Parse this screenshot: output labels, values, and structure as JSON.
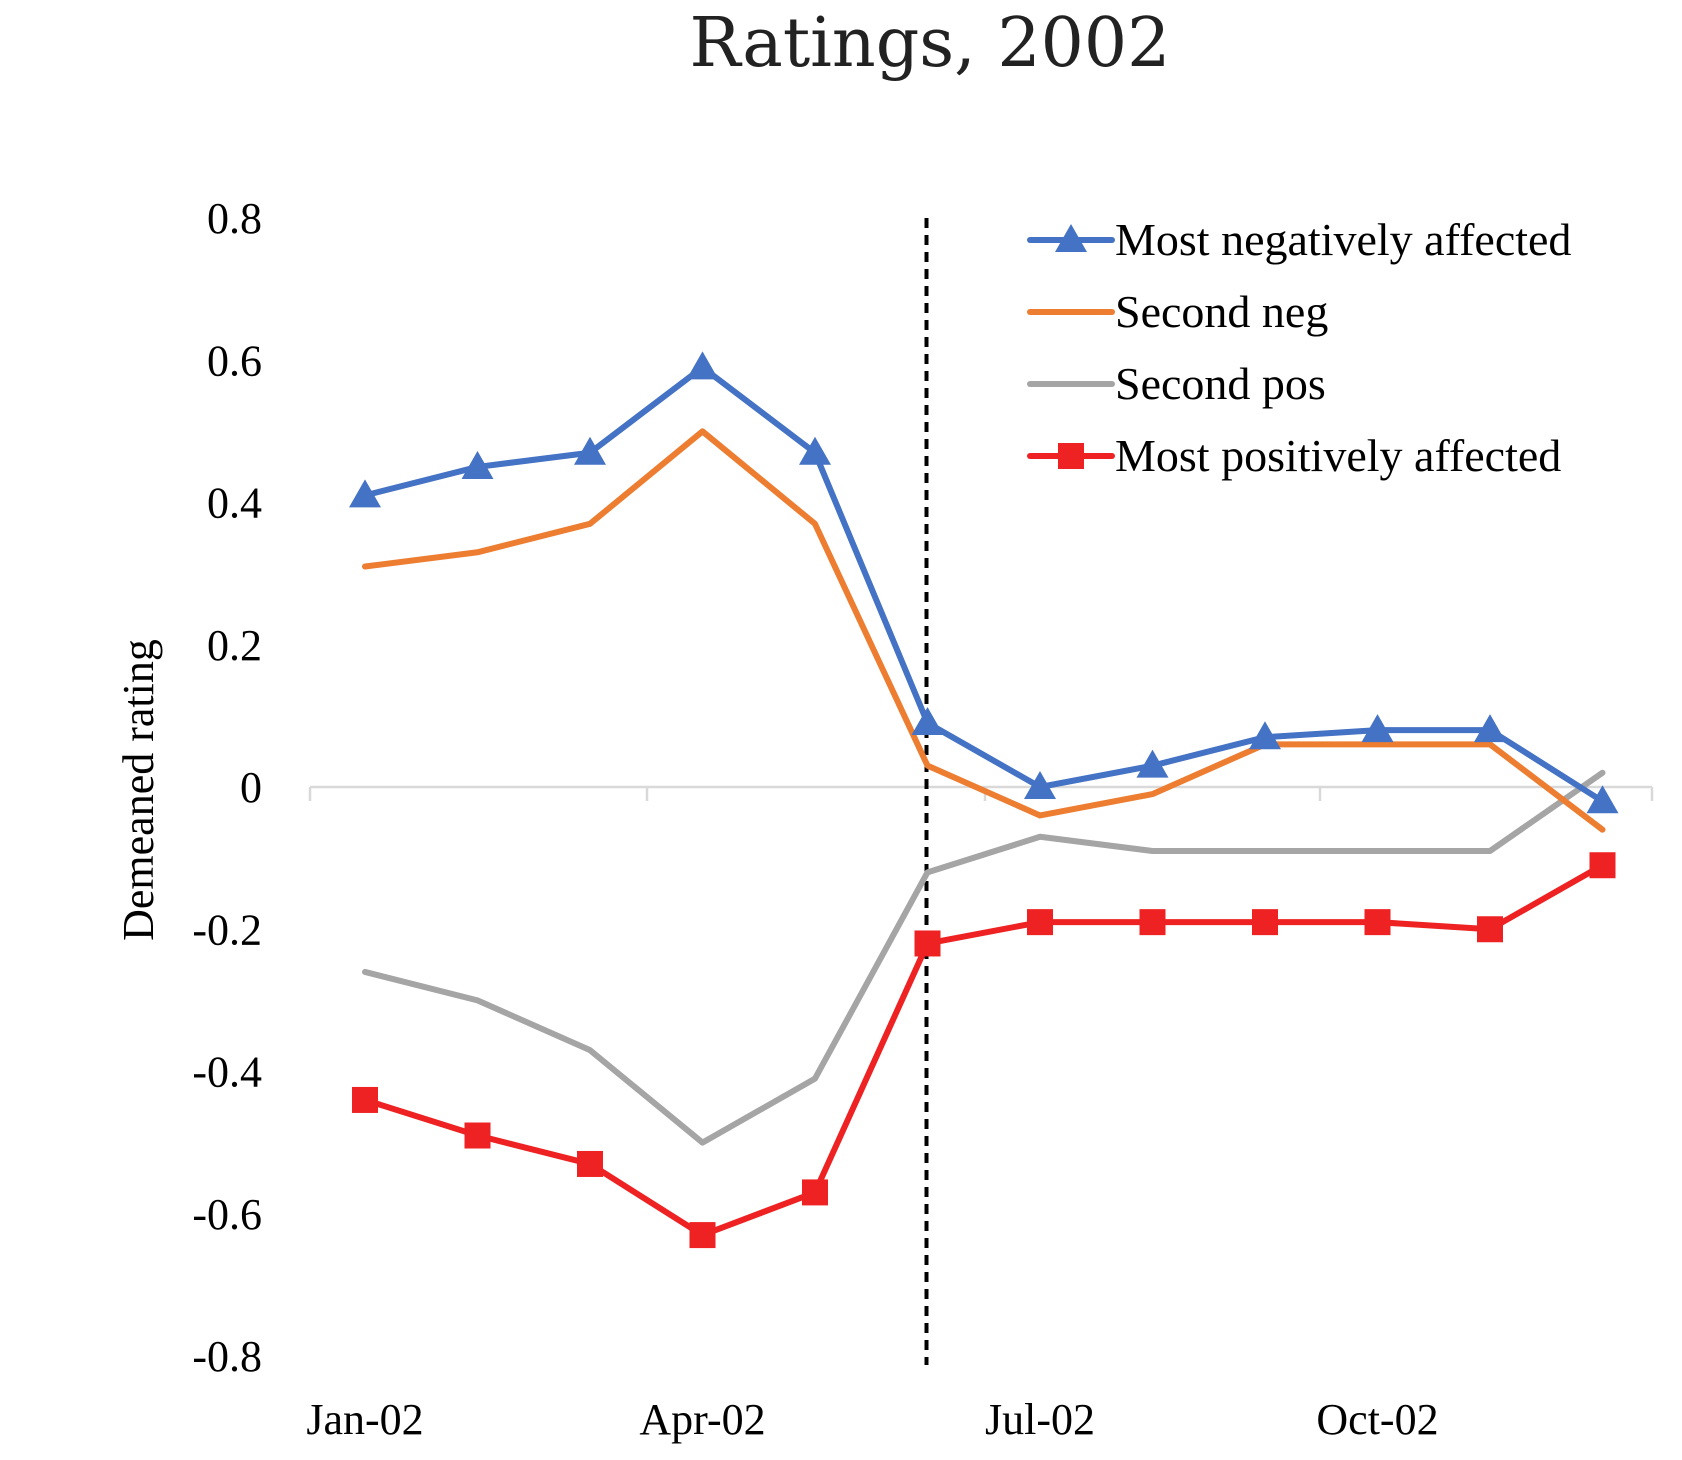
{
  "chart_data": {
    "type": "line",
    "title": "Ratings, 2002",
    "ylabel": "Demeaned rating",
    "xlabel": "",
    "ylim": [
      -0.8,
      0.8
    ],
    "yticks": [
      0.8,
      0.6,
      0.4,
      0.2,
      0,
      -0.2,
      -0.4,
      -0.6,
      -0.8
    ],
    "ytick_labels": [
      "0.8",
      "0.6",
      "0.4",
      "0.2",
      "0",
      "-0.2",
      "-0.4",
      "-0.6",
      "-0.8"
    ],
    "x_months": [
      "Jan-02",
      "Feb-02",
      "Mar-02",
      "Apr-02",
      "May-02",
      "Jun-02",
      "Jul-02",
      "Aug-02",
      "Sep-02",
      "Oct-02",
      "Nov-02",
      "Dec-02"
    ],
    "xtick_labels": [
      "Jan-02",
      "Apr-02",
      "Jul-02",
      "Oct-02"
    ],
    "xtick_months": [
      "Jan-02",
      "Apr-02",
      "Jul-02",
      "Oct-02"
    ],
    "reference_line": {
      "x": "Jun-02",
      "style": "dashed",
      "color": "#000000"
    },
    "grid": false,
    "legend_position": "top-right",
    "series": [
      {
        "name": "Most negatively affected",
        "color": "#4472C4",
        "marker": "triangle",
        "values": [
          0.41,
          0.45,
          0.47,
          0.59,
          0.47,
          0.09,
          0.0,
          0.03,
          0.07,
          0.08,
          0.08,
          -0.02
        ]
      },
      {
        "name": "Second neg",
        "color": "#ED7D31",
        "marker": "none",
        "values": [
          0.31,
          0.33,
          0.37,
          0.5,
          0.37,
          0.03,
          -0.04,
          -0.01,
          0.06,
          0.06,
          0.06,
          -0.06
        ]
      },
      {
        "name": "Second pos",
        "color": "#A5A5A5",
        "marker": "none",
        "values": [
          -0.26,
          -0.3,
          -0.37,
          -0.5,
          -0.41,
          -0.12,
          -0.07,
          -0.09,
          -0.09,
          -0.09,
          -0.09,
          0.02
        ]
      },
      {
        "name": "Most positively affected",
        "color": "#EE2222",
        "marker": "square",
        "values": [
          -0.44,
          -0.49,
          -0.53,
          -0.63,
          -0.57,
          -0.22,
          -0.19,
          -0.19,
          -0.19,
          -0.19,
          -0.2,
          -0.11
        ]
      }
    ]
  }
}
